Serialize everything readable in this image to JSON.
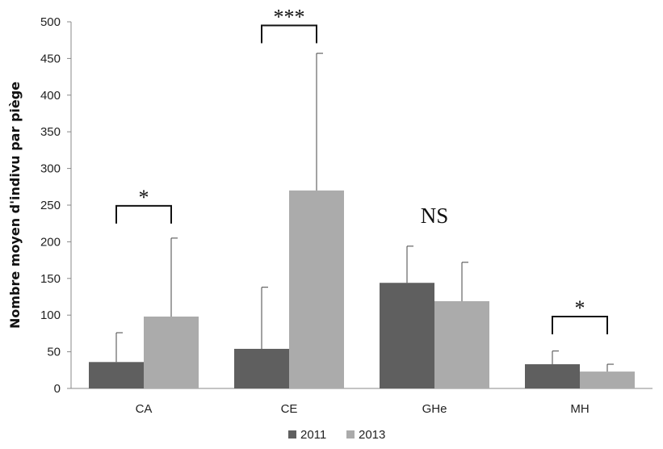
{
  "chart_data": {
    "type": "bar",
    "categories": [
      "CA",
      "CE",
      "GHe",
      "MH"
    ],
    "series": [
      {
        "name": "2011",
        "values": [
          36,
          54,
          144,
          33
        ],
        "errors": [
          40,
          84,
          50,
          18
        ],
        "color": "#5f5f5f"
      },
      {
        "name": "2013",
        "values": [
          98,
          270,
          119,
          23
        ],
        "errors": [
          107,
          187,
          53,
          10
        ],
        "color": "#ababab"
      }
    ],
    "ylabel": "Nombre moyen d'indivu  par piège",
    "ylim": [
      0,
      500
    ],
    "yticks": [
      "0",
      "50",
      "100",
      "150",
      "200",
      "250",
      "300",
      "350",
      "400",
      "450",
      "500"
    ],
    "annotations": [
      "*",
      "***",
      "NS",
      "*"
    ],
    "grid": false,
    "legend_position": "bottom"
  }
}
